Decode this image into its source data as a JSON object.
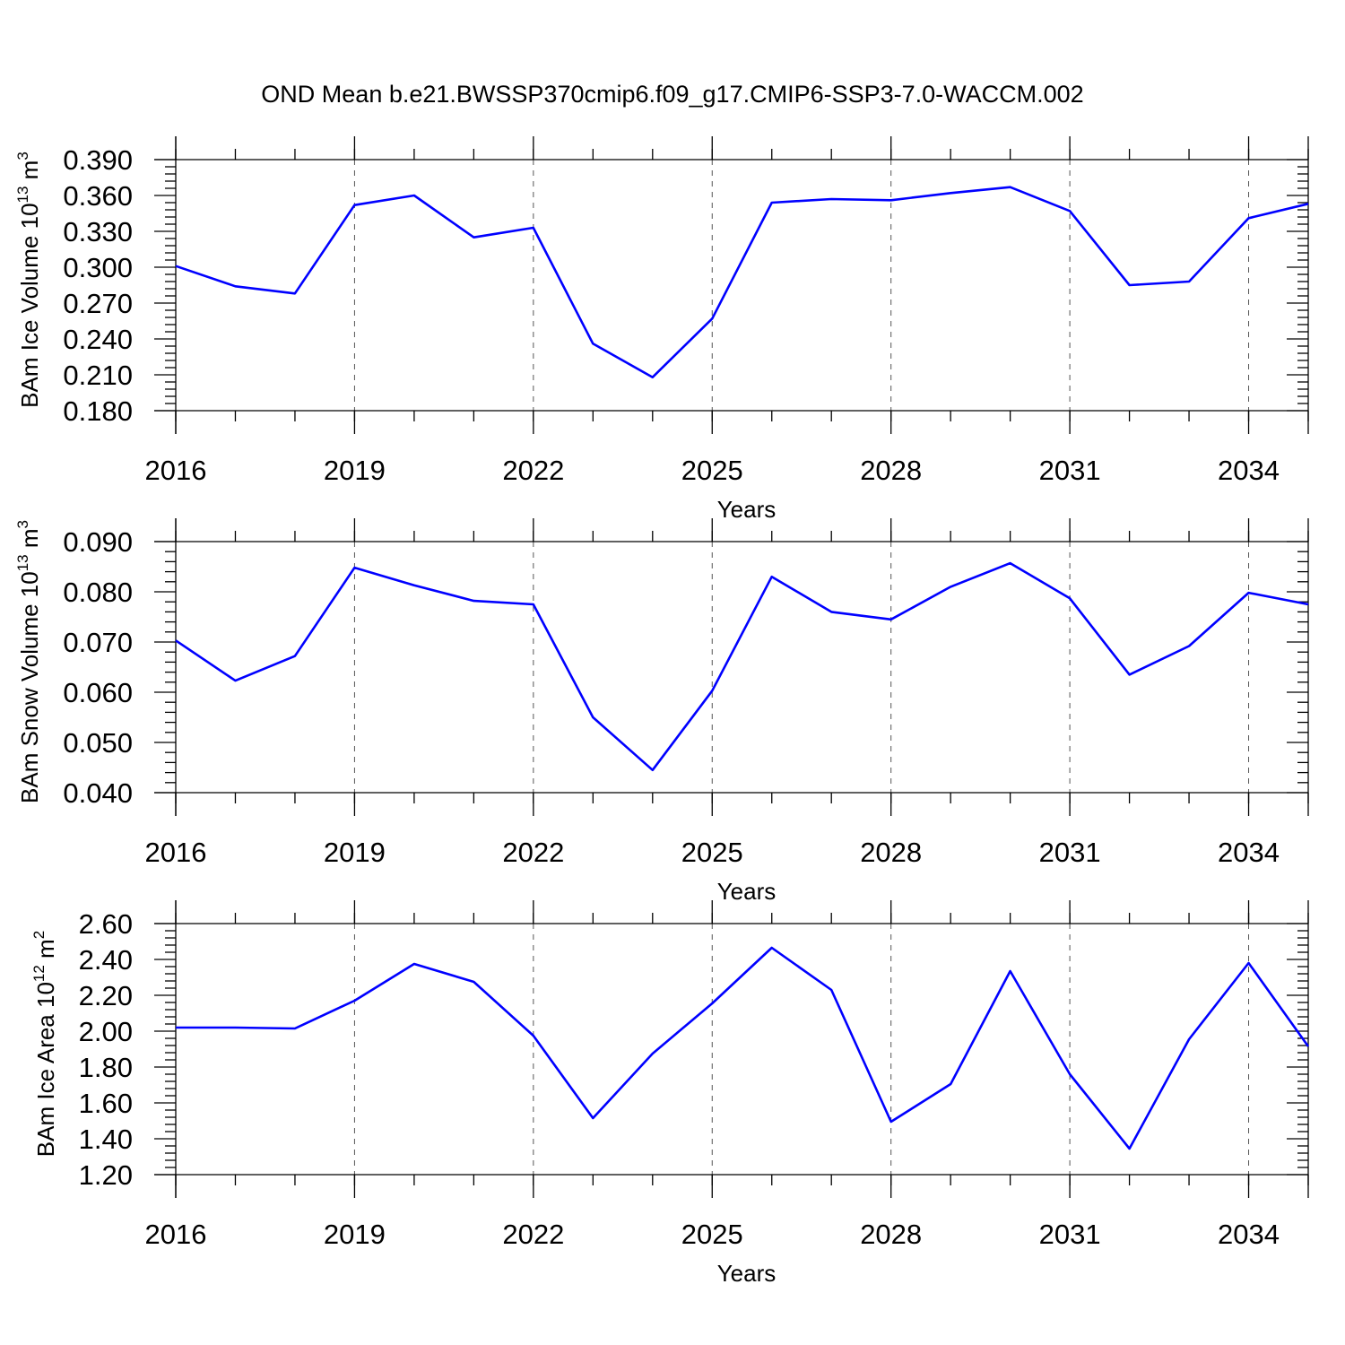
{
  "title": "OND Mean b.e21.BWSSP370cmip6.f09_g17.CMIP6-SSP3-7.0-WACCM.002",
  "colors": {
    "line": "#0000ff",
    "axis": "#000000",
    "grid": "#555555"
  },
  "chart_data": [
    {
      "type": "line",
      "ylabel": "BAm Ice Volume 10",
      "ylabel_exp": "13",
      "ylabel_unit": " m",
      "ylabel_unit_exp": "3",
      "xlabel": "Years",
      "xlim": [
        2016,
        2035
      ],
      "ylim": [
        0.18,
        0.39
      ],
      "yticks": [
        "0.180",
        "0.210",
        "0.240",
        "0.270",
        "0.300",
        "0.330",
        "0.360",
        "0.390"
      ],
      "xticks": [
        "2016",
        "2019",
        "2022",
        "2025",
        "2028",
        "2031",
        "2034"
      ],
      "grid_x": true,
      "series": [
        {
          "x": [
            2016,
            2017,
            2018,
            2019,
            2020,
            2021,
            2022,
            2023,
            2024,
            2025,
            2026,
            2027,
            2028,
            2029,
            2030,
            2031,
            2032,
            2033,
            2034,
            2035
          ],
          "values": [
            0.301,
            0.284,
            0.278,
            0.352,
            0.36,
            0.325,
            0.333,
            0.236,
            0.208,
            0.257,
            0.354,
            0.357,
            0.356,
            0.362,
            0.367,
            0.347,
            0.285,
            0.288,
            0.341,
            0.353
          ]
        }
      ]
    },
    {
      "type": "line",
      "ylabel": "BAm Snow Volume 10",
      "ylabel_exp": "13",
      "ylabel_unit": " m",
      "ylabel_unit_exp": "3",
      "xlabel": "Years",
      "xlim": [
        2016,
        2035
      ],
      "ylim": [
        0.04,
        0.09
      ],
      "yticks": [
        "0.040",
        "0.050",
        "0.060",
        "0.070",
        "0.080",
        "0.090"
      ],
      "xticks": [
        "2016",
        "2019",
        "2022",
        "2025",
        "2028",
        "2031",
        "2034"
      ],
      "grid_x": true,
      "series": [
        {
          "x": [
            2016,
            2017,
            2018,
            2019,
            2020,
            2021,
            2022,
            2023,
            2024,
            2025,
            2026,
            2027,
            2028,
            2029,
            2030,
            2031,
            2032,
            2033,
            2034,
            2035
          ],
          "values": [
            0.0703,
            0.0623,
            0.0672,
            0.0848,
            0.0813,
            0.0782,
            0.0775,
            0.055,
            0.0445,
            0.0603,
            0.083,
            0.076,
            0.0745,
            0.081,
            0.0857,
            0.0787,
            0.0635,
            0.0692,
            0.0798,
            0.0775
          ]
        }
      ]
    },
    {
      "type": "line",
      "ylabel": "BAm Ice Area 10",
      "ylabel_exp": "12",
      "ylabel_unit": " m",
      "ylabel_unit_exp": "2",
      "xlabel": "Years",
      "xlim": [
        2016,
        2035
      ],
      "ylim": [
        1.2,
        2.6
      ],
      "yticks": [
        "1.20",
        "1.40",
        "1.60",
        "1.80",
        "2.00",
        "2.20",
        "2.40",
        "2.60"
      ],
      "xticks": [
        "2016",
        "2019",
        "2022",
        "2025",
        "2028",
        "2031",
        "2034"
      ],
      "grid_x": true,
      "series": [
        {
          "x": [
            2016,
            2017,
            2018,
            2019,
            2020,
            2021,
            2022,
            2023,
            2024,
            2025,
            2026,
            2027,
            2028,
            2029,
            2030,
            2031,
            2032,
            2033,
            2034,
            2035
          ],
          "values": [
            2.02,
            2.02,
            2.015,
            2.17,
            2.375,
            2.275,
            1.975,
            1.515,
            1.875,
            2.155,
            2.465,
            2.23,
            1.495,
            1.705,
            2.335,
            1.76,
            1.345,
            1.955,
            2.38,
            1.915
          ]
        }
      ]
    }
  ]
}
